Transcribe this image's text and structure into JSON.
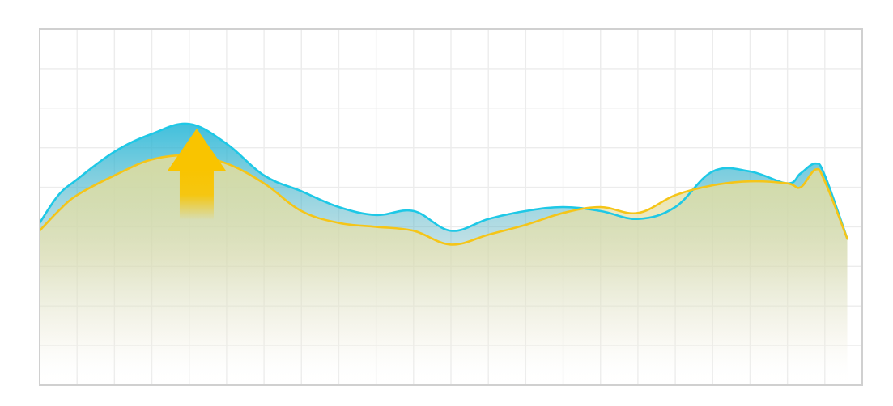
{
  "chart_data": {
    "type": "area",
    "title": "",
    "xlabel": "",
    "ylabel": "",
    "grid": true,
    "xlim": [
      0,
      22
    ],
    "ylim": [
      0,
      9
    ],
    "series": [
      {
        "color": "#1ec8e6",
        "points": [
          [
            0,
            4.1
          ],
          [
            0.5,
            4.8
          ],
          [
            1,
            5.2
          ],
          [
            2,
            5.9
          ],
          [
            3,
            6.35
          ],
          [
            4,
            6.6
          ],
          [
            5,
            6.1
          ],
          [
            6,
            5.3
          ],
          [
            7,
            4.9
          ],
          [
            8,
            4.5
          ],
          [
            9,
            4.3
          ],
          [
            10,
            4.4
          ],
          [
            11,
            3.9
          ],
          [
            12,
            4.2
          ],
          [
            13,
            4.4
          ],
          [
            14,
            4.5
          ],
          [
            15,
            4.4
          ],
          [
            16,
            4.2
          ],
          [
            17,
            4.5
          ],
          [
            18,
            5.4
          ],
          [
            19,
            5.4
          ],
          [
            20,
            5.1
          ],
          [
            20.35,
            5.35
          ],
          [
            20.75,
            5.6
          ],
          [
            21,
            5.3
          ],
          [
            21.6,
            3.7
          ]
        ]
      },
      {
        "color": "#f5c518",
        "points": [
          [
            0,
            3.9
          ],
          [
            0.5,
            4.4
          ],
          [
            1,
            4.8
          ],
          [
            2,
            5.3
          ],
          [
            3,
            5.7
          ],
          [
            4,
            5.8
          ],
          [
            5,
            5.6
          ],
          [
            6,
            5.1
          ],
          [
            7,
            4.4
          ],
          [
            8,
            4.1
          ],
          [
            9,
            4.0
          ],
          [
            10,
            3.9
          ],
          [
            11,
            3.55
          ],
          [
            12,
            3.8
          ],
          [
            13,
            4.05
          ],
          [
            14,
            4.35
          ],
          [
            15,
            4.5
          ],
          [
            16,
            4.35
          ],
          [
            17,
            4.8
          ],
          [
            18,
            5.05
          ],
          [
            19,
            5.15
          ],
          [
            20,
            5.1
          ],
          [
            20.35,
            5.0
          ],
          [
            20.75,
            5.45
          ],
          [
            21,
            5.15
          ],
          [
            21.6,
            3.7
          ]
        ]
      }
    ],
    "annotations": [
      {
        "type": "arrow",
        "direction": "up",
        "x": 4.2,
        "color": "#f9c400"
      }
    ]
  }
}
